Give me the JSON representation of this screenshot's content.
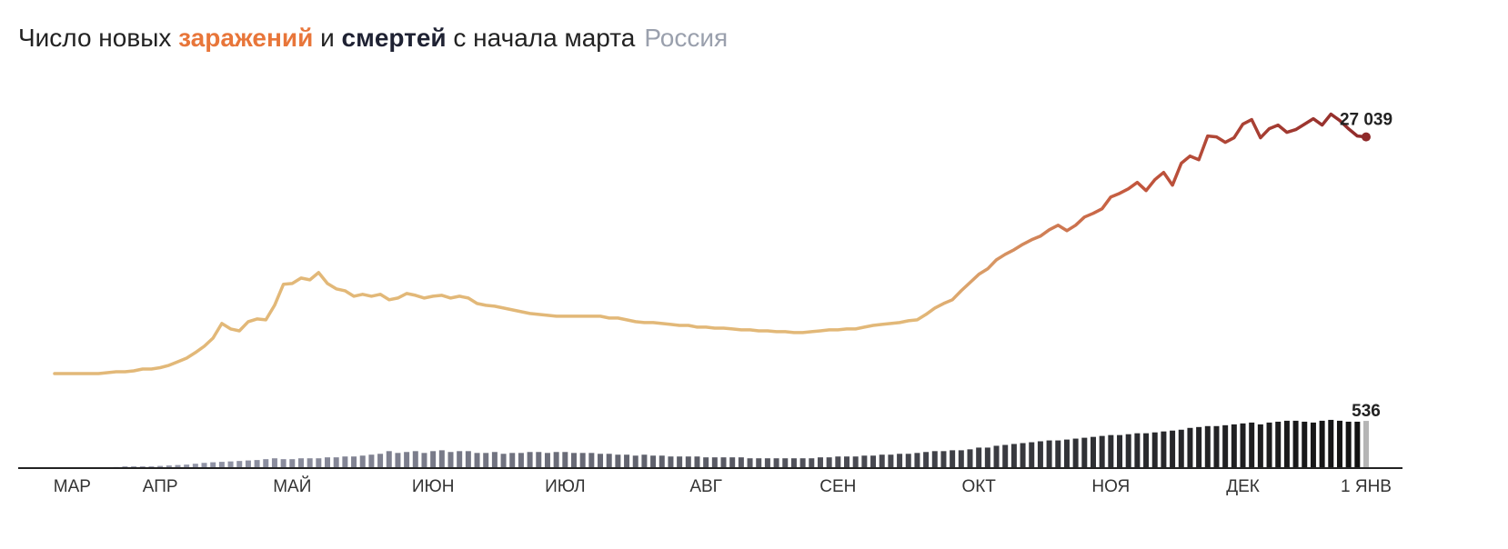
{
  "chart_data": {
    "type": "line-bar",
    "title_prefix": "Число новых",
    "title_joiner": "и",
    "title_suffix": "с начала марта",
    "subtitle": "Россия",
    "xlim": [
      0,
      149
    ],
    "xticks": [
      {
        "value": 2,
        "label": "МАР"
      },
      {
        "value": 12,
        "label": "АПР"
      },
      {
        "value": 27,
        "label": "МАЙ"
      },
      {
        "value": 43,
        "label": "ИЮН"
      },
      {
        "value": 58,
        "label": "ИЮЛ"
      },
      {
        "value": 74,
        "label": "АВГ"
      },
      {
        "value": 89,
        "label": "СЕН"
      },
      {
        "value": 105,
        "label": "ОКТ"
      },
      {
        "value": 120,
        "label": "НОЯ"
      },
      {
        "value": 135,
        "label": "ДЕК"
      },
      {
        "value": 149,
        "label": "1 ЯНВ"
      }
    ],
    "ylim": [
      0,
      30000
    ],
    "y2lim": [
      0,
      600
    ],
    "series": [
      {
        "name": "заражений",
        "title_color": "#e8763a",
        "color": [
          "#e2b878",
          "#c4583e",
          "#8f2a2a"
        ],
        "values": [
          100,
          100,
          100,
          100,
          100,
          100,
          210,
          310,
          310,
          410,
          620,
          620,
          780,
          1040,
          1450,
          1860,
          2490,
          3210,
          4140,
          5800,
          5180,
          4970,
          6010,
          6320,
          6220,
          7870,
          10260,
          10360,
          10980,
          10770,
          11600,
          10360,
          9740,
          9530,
          8910,
          9120,
          8910,
          9120,
          8500,
          8700,
          9220,
          9010,
          8700,
          8910,
          9010,
          8700,
          8910,
          8700,
          8080,
          7870,
          7770,
          7560,
          7360,
          7150,
          6940,
          6840,
          6730,
          6630,
          6630,
          6630,
          6630,
          6630,
          6630,
          6420,
          6420,
          6220,
          6010,
          5910,
          5910,
          5800,
          5700,
          5590,
          5590,
          5390,
          5390,
          5280,
          5280,
          5180,
          5080,
          5080,
          4970,
          4970,
          4870,
          4870,
          4770,
          4770,
          4870,
          4970,
          5080,
          5080,
          5180,
          5180,
          5390,
          5590,
          5700,
          5800,
          5910,
          6110,
          6220,
          6840,
          7560,
          8080,
          8500,
          9530,
          10460,
          11400,
          12020,
          13050,
          13680,
          14190,
          14810,
          15330,
          15750,
          16470,
          16990,
          16370,
          16990,
          17920,
          18340,
          18860,
          20200,
          20620,
          21130,
          21860,
          20930,
          22170,
          23000,
          21550,
          24040,
          24860,
          24450,
          27140,
          27040,
          26420,
          26940,
          28490,
          29010,
          26940,
          27970,
          28390,
          27560,
          27870,
          28490,
          29110,
          28390,
          29630,
          28900,
          27970,
          27140,
          27039
        ],
        "value_labels": [
          null,
          null,
          null,
          null,
          null,
          null,
          null,
          null,
          null,
          null,
          null,
          null,
          null,
          null,
          null,
          null,
          null,
          null,
          null,
          null,
          null,
          null,
          null,
          null,
          null,
          null,
          null,
          null,
          null,
          null,
          null,
          null,
          null,
          null,
          null,
          null,
          null,
          null,
          null,
          null,
          null,
          null,
          null,
          null,
          null,
          null,
          null,
          null,
          null,
          null,
          null,
          null,
          null,
          null,
          null,
          null,
          null,
          null,
          null,
          null,
          null,
          null,
          null,
          null,
          null,
          null,
          null,
          null,
          null,
          null,
          null,
          null,
          null,
          null,
          null,
          null,
          null,
          null,
          null,
          null,
          null,
          null,
          null,
          null,
          null,
          null,
          null,
          null,
          null,
          null,
          null,
          null,
          null,
          null,
          null,
          null,
          null,
          null,
          null,
          null,
          null,
          null,
          null,
          null,
          null,
          null,
          null,
          null,
          null,
          null,
          null,
          null,
          null,
          null,
          null,
          null,
          null,
          null,
          null,
          null,
          null,
          null,
          null,
          null,
          null,
          null,
          null,
          null,
          null,
          null,
          null,
          null,
          null,
          null,
          null,
          null,
          null,
          null,
          null,
          null,
          null,
          null,
          null,
          null,
          null,
          null,
          null,
          null,
          null,
          "27 039"
        ]
      },
      {
        "name": "смертей",
        "axis": "y2",
        "title_color": "#1f2233",
        "color": [
          "#a3a6ba",
          "#111111"
        ],
        "last_color": "#b5b5b5",
        "values": [
          0,
          0,
          0,
          0,
          0,
          0,
          0,
          2,
          10,
          10,
          10,
          10,
          15,
          20,
          25,
          30,
          40,
          50,
          57,
          62,
          67,
          72,
          78,
          83,
          93,
          103,
          93,
          93,
          103,
          103,
          103,
          114,
          114,
          124,
          124,
          134,
          145,
          155,
          186,
          165,
          176,
          186,
          165,
          186,
          196,
          176,
          186,
          186,
          165,
          165,
          176,
          155,
          165,
          165,
          176,
          176,
          165,
          176,
          176,
          165,
          165,
          165,
          155,
          155,
          145,
          145,
          134,
          145,
          134,
          134,
          124,
          124,
          124,
          124,
          114,
          114,
          114,
          114,
          114,
          103,
          103,
          103,
          103,
          103,
          103,
          103,
          103,
          114,
          114,
          124,
          124,
          124,
          134,
          134,
          145,
          145,
          155,
          155,
          165,
          176,
          186,
          186,
          196,
          196,
          207,
          227,
          227,
          248,
          258,
          269,
          279,
          289,
          300,
          310,
          310,
          320,
          331,
          341,
          351,
          362,
          372,
          372,
          382,
          393,
          393,
          403,
          414,
          424,
          434,
          455,
          465,
          476,
          476,
          486,
          496,
          507,
          517,
          496,
          517,
          527,
          538,
          538,
          527,
          517,
          538,
          548,
          538,
          527,
          527,
          536
        ]
      }
    ]
  }
}
